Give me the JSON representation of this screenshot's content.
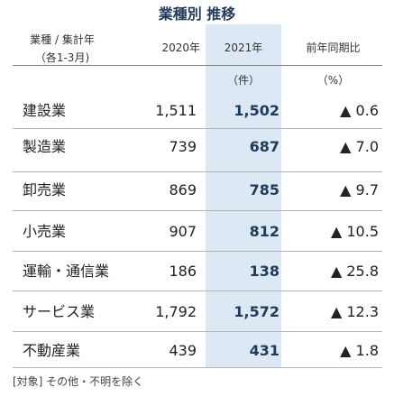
{
  "title": "業種別 推移",
  "header": {
    "category_line1": "業種 / 集計年",
    "category_line2": "（各1-3月)",
    "year_2020": "2020年",
    "year_2021": "2021年",
    "yoy": "前年同期比"
  },
  "units": {
    "count": "（件）",
    "percent": "（%）"
  },
  "rows": [
    {
      "category": "建設業",
      "y2020": "1,511",
      "y2021": "1,502",
      "yoy": "▲ 0.6"
    },
    {
      "category": "製造業",
      "y2020": "739",
      "y2021": "687",
      "yoy": "▲ 7.0"
    },
    {
      "category": "卸売業",
      "y2020": "869",
      "y2021": "785",
      "yoy": "▲ 9.7"
    },
    {
      "category": "小売業",
      "y2020": "907",
      "y2021": "812",
      "yoy": "▲ 10.5"
    },
    {
      "category": "運輸・通信業",
      "y2020": "186",
      "y2021": "138",
      "yoy": "▲ 25.8"
    },
    {
      "category": "サービス業",
      "y2020": "1,792",
      "y2021": "1,572",
      "yoy": "▲ 12.3"
    },
    {
      "category": "不動産業",
      "y2020": "439",
      "y2021": "431",
      "yoy": "▲ 1.8"
    }
  ],
  "note": "[対象] その他・不明を除く",
  "colors": {
    "highlight_column": "#dce9f5",
    "title": "#1f3a5c",
    "divider": "#b5b5b5"
  }
}
